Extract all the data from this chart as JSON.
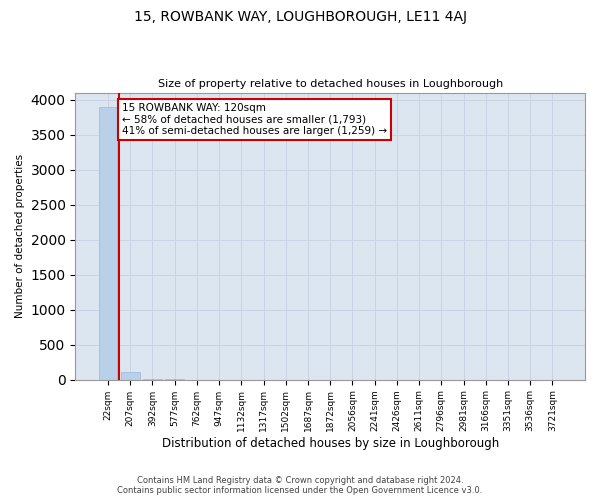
{
  "title": "15, ROWBANK WAY, LOUGHBOROUGH, LE11 4AJ",
  "subtitle": "Size of property relative to detached houses in Loughborough",
  "xlabel": "Distribution of detached houses by size in Loughborough",
  "ylabel": "Number of detached properties",
  "categories": [
    "22sqm",
    "207sqm",
    "392sqm",
    "577sqm",
    "762sqm",
    "947sqm",
    "1132sqm",
    "1317sqm",
    "1502sqm",
    "1687sqm",
    "1872sqm",
    "2056sqm",
    "2241sqm",
    "2426sqm",
    "2611sqm",
    "2796sqm",
    "2981sqm",
    "3166sqm",
    "3351sqm",
    "3536sqm",
    "3721sqm"
  ],
  "values": [
    3900,
    110,
    5,
    2,
    1,
    1,
    0,
    0,
    0,
    0,
    0,
    0,
    0,
    0,
    0,
    0,
    0,
    0,
    0,
    0,
    0
  ],
  "bar_color": "#b8d0e8",
  "bar_edge_color": "#9ab8d8",
  "grid_color": "#c8d4e4",
  "background_color": "#dce6f0",
  "property_line_color": "#cc0000",
  "annotation_text": "15 ROWBANK WAY: 120sqm\n← 58% of detached houses are smaller (1,793)\n41% of semi-detached houses are larger (1,259) →",
  "annotation_box_color": "#ffffff",
  "annotation_border_color": "#cc0000",
  "footer_line1": "Contains HM Land Registry data © Crown copyright and database right 2024.",
  "footer_line2": "Contains public sector information licensed under the Open Government Licence v3.0.",
  "ylim": [
    0,
    4100
  ],
  "yticks": [
    0,
    500,
    1000,
    1500,
    2000,
    2500,
    3000,
    3500,
    4000
  ]
}
